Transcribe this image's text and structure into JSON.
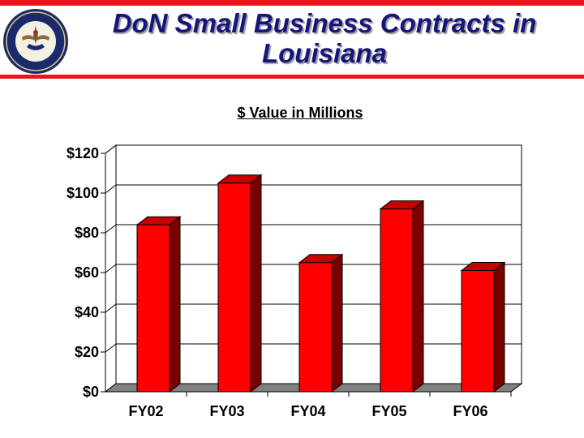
{
  "slide": {
    "title_line1": "DoN Small Business Contracts in",
    "title_line2": "Louisiana"
  },
  "colors": {
    "accent_red": "#e8161b",
    "title_blue": "#16167a",
    "bar_front": "#ff0000",
    "bar_side": "#7a0000",
    "bar_top": "#c40000",
    "floor": "#808080"
  },
  "chart_data": {
    "type": "bar",
    "subtitle": "$ Value in Millions",
    "categories": [
      "FY02",
      "FY03",
      "FY04",
      "FY05",
      "FY06"
    ],
    "values": [
      84,
      105,
      65,
      92,
      61
    ],
    "ylim": [
      0,
      120
    ],
    "yticks": [
      0,
      20,
      40,
      60,
      80,
      100,
      120
    ],
    "ytick_labels": [
      "$0",
      "$20",
      "$40",
      "$60",
      "$80",
      "$100",
      "$120"
    ],
    "grid": true,
    "style": "3d"
  }
}
